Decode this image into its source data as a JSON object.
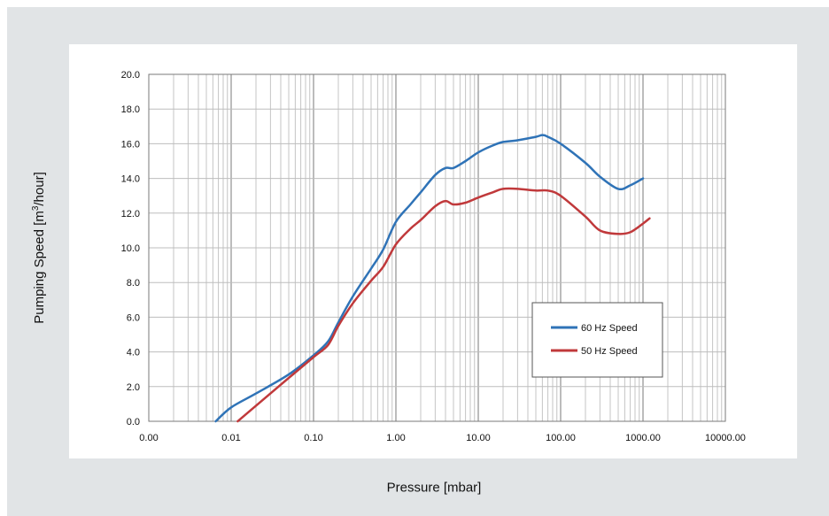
{
  "chart_data": {
    "type": "line",
    "xlabel": "Pressure [mbar]",
    "ylabel_prefix": "Pumping Speed [m",
    "ylabel_sup": "3",
    "ylabel_suffix": "/hour]",
    "x_scale": "log",
    "xlim": [
      0.001,
      10000
    ],
    "ylim": [
      0,
      20
    ],
    "x_tick_labels": [
      "0.00",
      "0.01",
      "0.10",
      "1.00",
      "10.00",
      "100.00",
      "1000.00",
      "10000.00"
    ],
    "y_tick_labels": [
      "0.0",
      "2.0",
      "4.0",
      "6.0",
      "8.0",
      "10.0",
      "12.0",
      "14.0",
      "16.0",
      "18.0",
      "20.0"
    ],
    "grid": true,
    "legend_position": "right",
    "series": [
      {
        "name": "60 Hz Speed",
        "color": "#2f73b7",
        "x": [
          0.0065,
          0.01,
          0.02,
          0.05,
          0.1,
          0.15,
          0.2,
          0.3,
          0.5,
          0.7,
          1,
          1.5,
          2,
          3,
          4,
          5,
          7,
          10,
          15,
          20,
          30,
          50,
          60,
          70,
          100,
          200,
          300,
          500,
          700,
          1000
        ],
        "y": [
          0,
          0.8,
          1.6,
          2.7,
          3.8,
          4.6,
          5.7,
          7.2,
          8.8,
          9.9,
          11.5,
          12.5,
          13.2,
          14.2,
          14.6,
          14.6,
          15,
          15.5,
          15.9,
          16.1,
          16.2,
          16.4,
          16.5,
          16.4,
          16,
          14.9,
          14.1,
          13.4,
          13.6,
          14
        ]
      },
      {
        "name": "50 Hz Speed",
        "color": "#c0393b",
        "x": [
          0.012,
          0.02,
          0.05,
          0.1,
          0.15,
          0.2,
          0.3,
          0.5,
          0.7,
          1,
          1.5,
          2,
          3,
          4,
          5,
          7,
          10,
          15,
          20,
          30,
          50,
          70,
          100,
          200,
          300,
          500,
          700,
          1000,
          1200
        ],
        "y": [
          0,
          0.9,
          2.5,
          3.7,
          4.4,
          5.5,
          6.8,
          8.1,
          8.9,
          10.2,
          11.1,
          11.6,
          12.4,
          12.7,
          12.5,
          12.6,
          12.9,
          13.2,
          13.4,
          13.4,
          13.3,
          13.3,
          13,
          11.8,
          11,
          10.8,
          10.9,
          11.4,
          11.7
        ]
      }
    ]
  }
}
